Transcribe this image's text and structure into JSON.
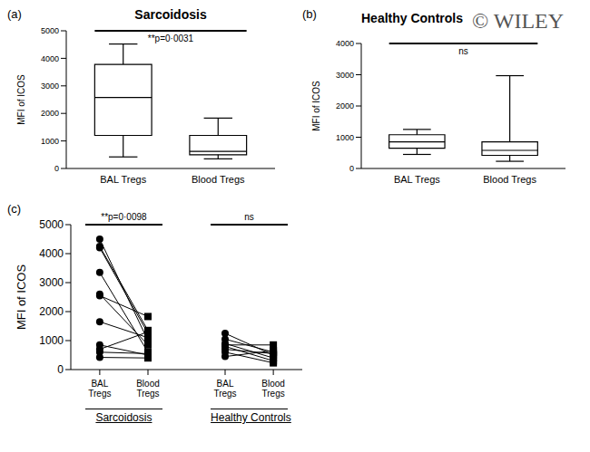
{
  "watermark": "© WILEY",
  "chart_data": [
    {
      "type": "box",
      "panel": "(a)",
      "title": "Sarcoidosis",
      "y_label": "MFI of ICOS",
      "categories": [
        "BAL Tregs",
        "Blood Tregs"
      ],
      "boxes": [
        {
          "min": 420,
          "q1": 1200,
          "median": 2580,
          "q3": 3780,
          "max": 4520
        },
        {
          "min": 350,
          "q1": 500,
          "median": 620,
          "q3": 1200,
          "max": 1830
        }
      ],
      "ylim": [
        0,
        5000
      ],
      "yticks": [
        0,
        1000,
        2000,
        3000,
        4000,
        5000
      ],
      "annotation": "**p=0·0031",
      "color": "#000000"
    },
    {
      "type": "box",
      "panel": "(b)",
      "title": "Healthy Controls",
      "y_label": "MFI of ICOS",
      "categories": [
        "BAL Tregs",
        "Blood Tregs"
      ],
      "boxes": [
        {
          "min": 450,
          "q1": 650,
          "median": 850,
          "q3": 1080,
          "max": 1250
        },
        {
          "min": 230,
          "q1": 420,
          "median": 580,
          "q3": 850,
          "max": 2970
        }
      ],
      "ylim": [
        0,
        4000
      ],
      "yticks": [
        0,
        1000,
        2000,
        3000,
        4000
      ],
      "annotation": "ns",
      "color": "#000000"
    },
    {
      "type": "paired_dot",
      "panel": "(c)",
      "y_label": "MFI of ICOS",
      "categories": [
        "BAL Tregs",
        "Blood Tregs"
      ],
      "groups": [
        {
          "name": "Sarcoidosis",
          "annotation": "**p=0·0098",
          "pairs": [
            [
              4500,
              1000
            ],
            [
              4250,
              1350
            ],
            [
              4200,
              1250
            ],
            [
              3350,
              600
            ],
            [
              2600,
              850
            ],
            [
              2550,
              1830
            ],
            [
              1650,
              1100
            ],
            [
              850,
              500
            ],
            [
              700,
              1300
            ],
            [
              600,
              550
            ],
            [
              420,
              400
            ]
          ]
        },
        {
          "name": "Healthy Controls",
          "annotation": "ns",
          "pairs": [
            [
              1250,
              500
            ],
            [
              1050,
              600
            ],
            [
              900,
              400
            ],
            [
              850,
              850
            ],
            [
              800,
              300
            ],
            [
              700,
              550
            ],
            [
              600,
              230
            ],
            [
              450,
              650
            ]
          ]
        }
      ],
      "ylim": [
        0,
        5000
      ],
      "yticks": [
        0,
        1000,
        2000,
        3000,
        4000,
        5000
      ],
      "color": "#000000"
    }
  ]
}
